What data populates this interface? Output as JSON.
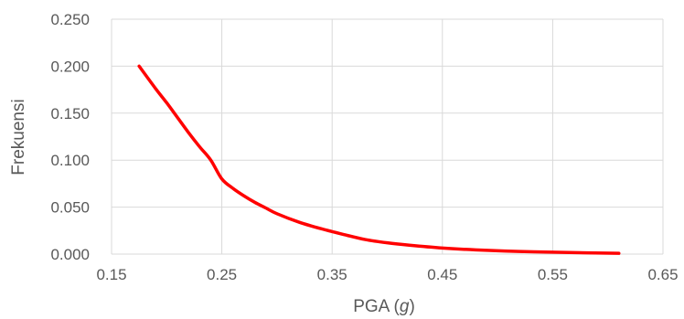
{
  "chart_data": {
    "type": "line",
    "title": "",
    "xlabel_prefix": "PGA (",
    "xlabel_unit": "g",
    "xlabel_suffix": ")",
    "ylabel": "Frekuensi",
    "xlim": [
      0.15,
      0.65
    ],
    "ylim": [
      0.0,
      0.25
    ],
    "x_ticks": [
      "0.15",
      "0.25",
      "0.35",
      "0.45",
      "0.55",
      "0.65"
    ],
    "y_ticks": [
      "0.000",
      "0.050",
      "0.100",
      "0.150",
      "0.200",
      "0.250"
    ],
    "grid": true,
    "legend": "none",
    "series": [
      {
        "color": "#ff0000",
        "x": [
          0.175,
          0.19,
          0.2,
          0.21,
          0.22,
          0.23,
          0.24,
          0.25,
          0.26,
          0.27,
          0.28,
          0.29,
          0.3,
          0.32,
          0.34,
          0.36,
          0.38,
          0.4,
          0.42,
          0.45,
          0.48,
          0.52,
          0.56,
          0.61
        ],
        "y": [
          0.2,
          0.176,
          0.161,
          0.145,
          0.129,
          0.114,
          0.1,
          0.08,
          0.07,
          0.062,
          0.055,
          0.049,
          0.043,
          0.034,
          0.027,
          0.021,
          0.0155,
          0.012,
          0.0095,
          0.0065,
          0.0045,
          0.0028,
          0.0018,
          0.0008
        ]
      }
    ]
  }
}
